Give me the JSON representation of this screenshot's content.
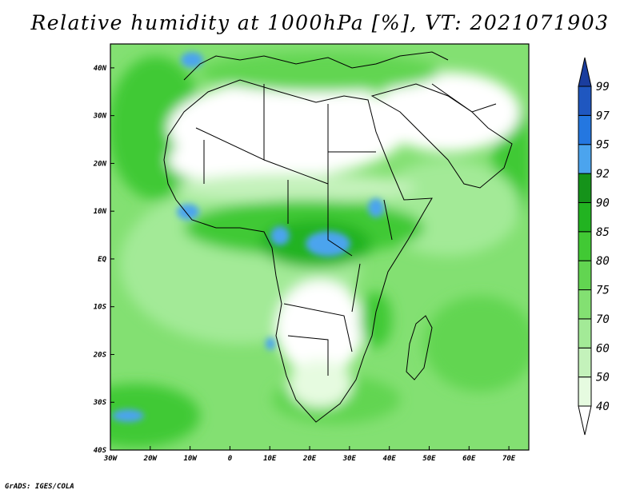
{
  "title": "Relative humidity at 1000hPa [%], VT: 2021071903",
  "credit": "GrADS: IGES/COLA",
  "map": {
    "projection": "lat-lon",
    "lon_range": [
      -30,
      75
    ],
    "lat_range": [
      -40,
      45
    ],
    "lon_ticks": [
      {
        "value": -30,
        "label": "30W"
      },
      {
        "value": -20,
        "label": "20W"
      },
      {
        "value": -10,
        "label": "10W"
      },
      {
        "value": 0,
        "label": "0"
      },
      {
        "value": 10,
        "label": "10E"
      },
      {
        "value": 20,
        "label": "20E"
      },
      {
        "value": 30,
        "label": "30E"
      },
      {
        "value": 40,
        "label": "40E"
      },
      {
        "value": 50,
        "label": "50E"
      },
      {
        "value": 60,
        "label": "60E"
      },
      {
        "value": 70,
        "label": "70E"
      }
    ],
    "lat_ticks": [
      {
        "value": 40,
        "label": "40N"
      },
      {
        "value": 30,
        "label": "30N"
      },
      {
        "value": 20,
        "label": "20N"
      },
      {
        "value": 10,
        "label": "10N"
      },
      {
        "value": 0,
        "label": "EQ"
      },
      {
        "value": -10,
        "label": "10S"
      },
      {
        "value": -20,
        "label": "20S"
      },
      {
        "value": -30,
        "label": "30S"
      },
      {
        "value": -40,
        "label": "40S"
      }
    ]
  },
  "colorbar": {
    "levels": [
      "40",
      "50",
      "60",
      "70",
      "75",
      "80",
      "85",
      "90",
      "92",
      "95",
      "97",
      "99"
    ],
    "colors": [
      "#ffffff",
      "#e6fbe0",
      "#c4f2bb",
      "#a3ea97",
      "#83e072",
      "#62d551",
      "#41c934",
      "#22b321",
      "#15931a",
      "#4ba4ee",
      "#2477e0",
      "#1f57c0",
      "#1a3d9e"
    ]
  }
}
